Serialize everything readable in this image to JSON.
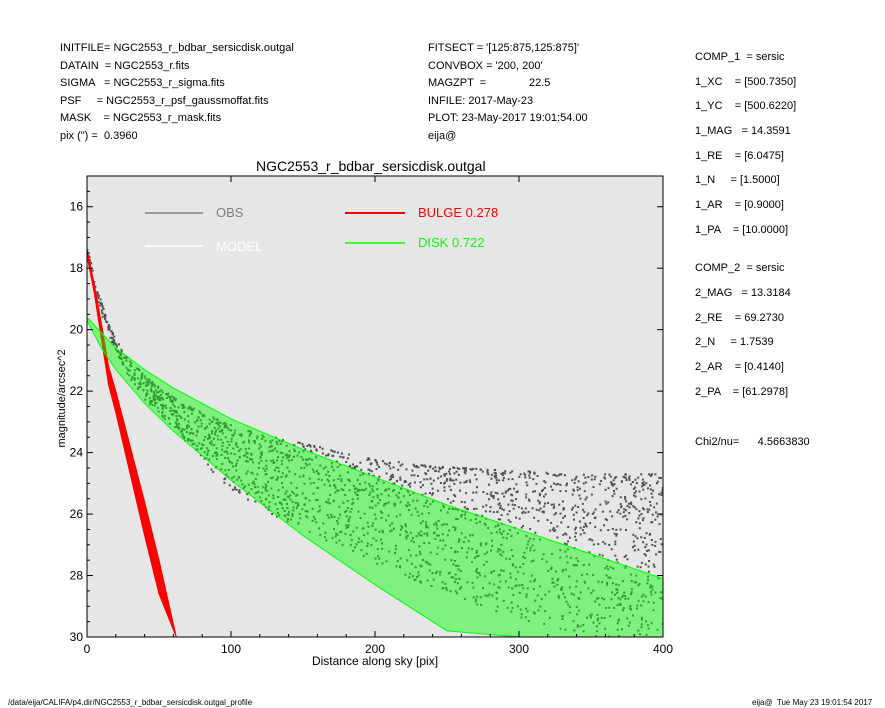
{
  "header": {
    "left": [
      "INITFILE= NGC2553_r_bdbar_sersicdisk.outgal",
      "DATAIN  = NGC2553_r.fits",
      "SIGMA   = NGC2553_r_sigma.fits",
      "PSF     = NGC2553_r_psf_gaussmoffat.fits",
      "MASK    = NGC2553_r_mask.fits",
      "pix (\") =  0.3960"
    ],
    "middle": [
      "FITSECT = '[125:875,125:875]'",
      "CONVBOX = '200, 200'",
      "MAGZPT  =              22.5",
      "INFILE: 2017-May-23",
      "PLOT: 23-May-2017 19:01:54.00",
      "eija@"
    ]
  },
  "params": [
    "COMP_1  = sersic",
    "1_XC    = [500.7350]",
    "1_YC    = [500.6220]",
    "1_MAG   = 14.3591",
    "1_RE    = [6.0475]",
    "1_N     = [1.5000]",
    "1_AR    = [0.9000]",
    "1_PA    = [10.0000]",
    "COMP_2  = sersic",
    "2_MAG   = 13.3184",
    "2_RE    = 69.2730",
    "2_N     = 1.7539",
    "2_AR    = [0.4140]",
    "2_PA    = [61.2978]",
    "Chi2/nu=      4.5663830"
  ],
  "footer": {
    "left": "/data/eija/CALIFA/p4.dir/NGC2553_r_bdbar_sersicdisk.outgal_profile",
    "right": "eija@  Tue May 23 19:01:54 2017"
  },
  "chart_data": {
    "type": "scatter",
    "title": "NGC2553_r_bdbar_sersicdisk.outgal",
    "xlabel": "Distance along sky [pix]",
    "ylabel": "magnitude/arcsec^2",
    "xlim": [
      0,
      400
    ],
    "ylim": [
      30,
      15
    ],
    "y_inverted": true,
    "xticks": [
      0,
      100,
      200,
      300,
      400
    ],
    "yticks": [
      16,
      18,
      20,
      22,
      24,
      26,
      28,
      30
    ],
    "background": "#e6e6e6",
    "grid": false,
    "legend": [
      {
        "name": "OBS",
        "color": "#808080",
        "value": ""
      },
      {
        "name": "MODEL",
        "color": "#ffffff",
        "value": ""
      },
      {
        "name": "BULGE",
        "color": "#ff0000",
        "value": "0.278"
      },
      {
        "name": "DISK",
        "color": "#00ff00",
        "value": "0.722"
      }
    ],
    "series": [
      {
        "name": "OBS",
        "color": "#505050",
        "style": "points",
        "x": [
          0,
          5,
          10,
          15,
          20,
          25,
          30,
          40,
          60,
          80,
          100,
          120,
          140,
          160,
          180,
          200,
          230,
          260,
          300,
          350,
          400
        ],
        "y_upper": [
          17.2,
          18.3,
          19.1,
          19.8,
          20.3,
          20.7,
          21.0,
          21.5,
          22.2,
          22.7,
          23.1,
          23.4,
          23.6,
          23.8,
          24.0,
          24.2,
          24.4,
          24.5,
          24.6,
          24.7,
          24.7
        ],
        "y_lower": [
          17.6,
          18.8,
          19.6,
          20.2,
          20.7,
          21.2,
          21.6,
          22.3,
          23.2,
          24.3,
          25.2,
          25.8,
          26.3,
          26.8,
          27.2,
          27.6,
          28.2,
          28.8,
          29.4,
          30.0,
          30.0
        ]
      },
      {
        "name": "BULGE",
        "color": "#ff0000",
        "style": "band",
        "x": [
          0,
          5,
          10,
          15,
          20,
          30,
          40,
          50,
          62
        ],
        "y_upper": [
          17.4,
          18.5,
          19.8,
          21.2,
          22.0,
          23.8,
          25.6,
          27.5,
          30.0
        ],
        "y_lower": [
          17.6,
          18.8,
          20.3,
          21.8,
          22.7,
          24.7,
          26.7,
          28.6,
          30.0
        ]
      },
      {
        "name": "DISK",
        "color": "#00ff00",
        "style": "band",
        "x": [
          0,
          10,
          20,
          40,
          60,
          80,
          100,
          150,
          200,
          250,
          300,
          350,
          400
        ],
        "y_upper": [
          19.6,
          20.1,
          20.6,
          21.3,
          21.9,
          22.4,
          22.9,
          23.9,
          24.8,
          25.7,
          26.5,
          27.3,
          28.1
        ],
        "y_lower": [
          19.7,
          20.6,
          21.3,
          22.4,
          23.3,
          24.1,
          24.9,
          26.7,
          28.3,
          29.8,
          30.0,
          30.0,
          30.0
        ]
      }
    ]
  }
}
